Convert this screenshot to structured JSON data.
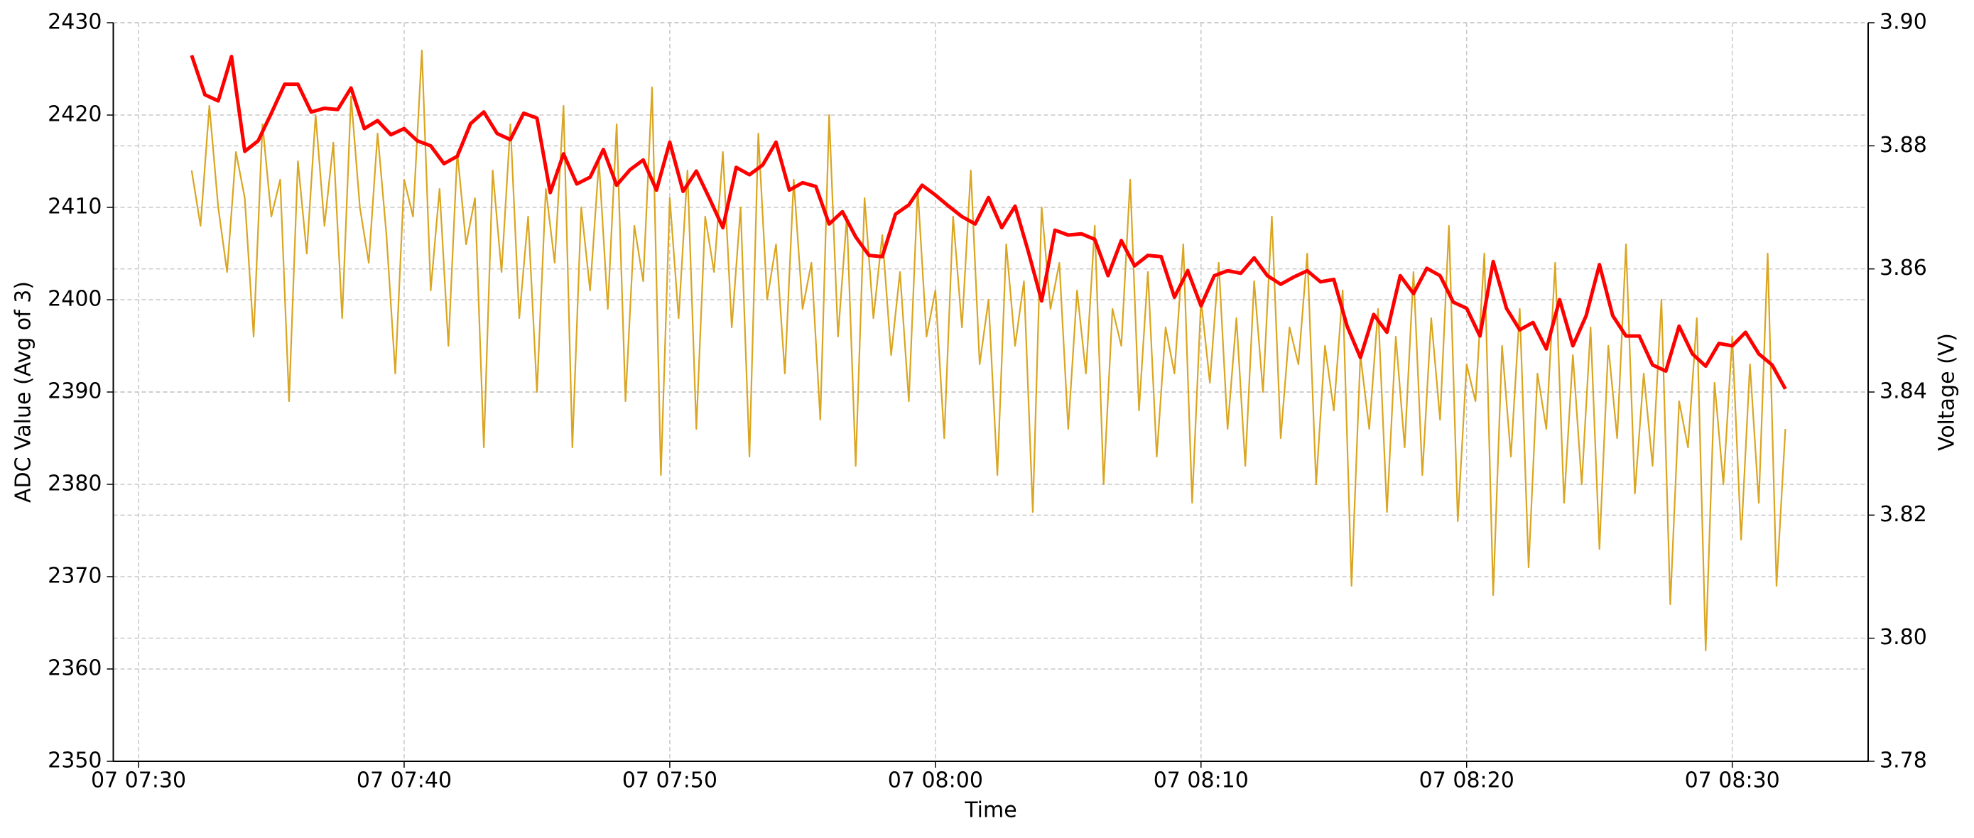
{
  "chart_data": {
    "type": "line",
    "x_label": "Time",
    "y_label": "ADC Value (Avg of 3)",
    "y2_label": "Voltage (V)",
    "xlim": [
      "07 07:29:03",
      "07 08:35:07"
    ],
    "xticks": [
      "07 07:30",
      "07 07:40",
      "07 07:50",
      "07 08:00",
      "07 08:10",
      "07 08:20",
      "07 08:30"
    ],
    "ylim": [
      2350,
      2430
    ],
    "yticks": [
      2350,
      2360,
      2370,
      2380,
      2390,
      2400,
      2410,
      2420,
      2430
    ],
    "y2lim": [
      3.78,
      3.9
    ],
    "y2ticks": [
      3.78,
      {
        "value": 3.8,
        "label": "3.80"
      },
      3.82,
      3.84,
      3.86,
      3.88,
      {
        "value": 3.9,
        "label": "3.90"
      }
    ],
    "grid": true,
    "series": [
      {
        "color": "#daa520",
        "axis": "y",
        "x": [
          "07 07:32:00",
          "07 07:32:20",
          "07 07:32:40",
          "07 07:33:00",
          "07 07:33:20",
          "07 07:33:40",
          "07 07:34:00",
          "07 07:34:20",
          "07 07:34:40",
          "07 07:35:00",
          "07 07:35:20",
          "07 07:35:40",
          "07 07:36:00",
          "07 07:36:20",
          "07 07:36:40",
          "07 07:37:00",
          "07 07:37:20",
          "07 07:37:40",
          "07 07:38:00",
          "07 07:38:20",
          "07 07:38:40",
          "07 07:39:00",
          "07 07:39:20",
          "07 07:39:40",
          "07 07:40:00",
          "07 07:40:20",
          "07 07:40:40",
          "07 07:41:00",
          "07 07:41:20",
          "07 07:41:40",
          "07 07:42:00",
          "07 07:42:20",
          "07 07:42:40",
          "07 07:43:00",
          "07 07:43:20",
          "07 07:43:40",
          "07 07:44:00",
          "07 07:44:20",
          "07 07:44:40",
          "07 07:45:00",
          "07 07:45:20",
          "07 07:45:40",
          "07 07:46:00",
          "07 07:46:20",
          "07 07:46:40",
          "07 07:47:00",
          "07 07:47:20",
          "07 07:47:40",
          "07 07:48:00",
          "07 07:48:20",
          "07 07:48:40",
          "07 07:49:00",
          "07 07:49:20",
          "07 07:49:40",
          "07 07:50:00",
          "07 07:50:20",
          "07 07:50:40",
          "07 07:51:00",
          "07 07:51:20",
          "07 07:51:40",
          "07 07:52:00",
          "07 07:52:20",
          "07 07:52:40",
          "07 07:53:00",
          "07 07:53:20",
          "07 07:53:40",
          "07 07:54:00",
          "07 07:54:20",
          "07 07:54:40",
          "07 07:55:00",
          "07 07:55:20",
          "07 07:55:40",
          "07 07:56:00",
          "07 07:56:20",
          "07 07:56:40",
          "07 07:57:00",
          "07 07:57:20",
          "07 07:57:40",
          "07 07:58:00",
          "07 07:58:20",
          "07 07:58:40",
          "07 07:59:00",
          "07 07:59:20",
          "07 07:59:40",
          "07 08:00:00",
          "07 08:00:20",
          "07 08:00:40",
          "07 08:01:00",
          "07 08:01:20",
          "07 08:01:40",
          "07 08:02:00",
          "07 08:02:20",
          "07 08:02:40",
          "07 08:03:00",
          "07 08:03:20",
          "07 08:03:40",
          "07 08:04:00",
          "07 08:04:20",
          "07 08:04:40",
          "07 08:05:00",
          "07 08:05:20",
          "07 08:05:40",
          "07 08:06:00",
          "07 08:06:20",
          "07 08:06:40",
          "07 08:07:00",
          "07 08:07:20",
          "07 08:07:40",
          "07 08:08:00",
          "07 08:08:20",
          "07 08:08:40",
          "07 08:09:00",
          "07 08:09:20",
          "07 08:09:40",
          "07 08:10:00",
          "07 08:10:20",
          "07 08:10:40",
          "07 08:11:00",
          "07 08:11:20",
          "07 08:11:40",
          "07 08:12:00",
          "07 08:12:20",
          "07 08:12:40",
          "07 08:13:00",
          "07 08:13:20",
          "07 08:13:40",
          "07 08:14:00",
          "07 08:14:20",
          "07 08:14:40",
          "07 08:15:00",
          "07 08:15:20",
          "07 08:15:40",
          "07 08:16:00",
          "07 08:16:20",
          "07 08:16:40",
          "07 08:17:00",
          "07 08:17:20",
          "07 08:17:40",
          "07 08:18:00",
          "07 08:18:20",
          "07 08:18:40",
          "07 08:19:00",
          "07 08:19:20",
          "07 08:19:40",
          "07 08:20:00",
          "07 08:20:20",
          "07 08:20:40",
          "07 08:21:00",
          "07 08:21:20",
          "07 08:21:40",
          "07 08:22:00",
          "07 08:22:20",
          "07 08:22:40",
          "07 08:23:00",
          "07 08:23:20",
          "07 08:23:40",
          "07 08:24:00",
          "07 08:24:20",
          "07 08:24:40",
          "07 08:25:00",
          "07 08:25:20",
          "07 08:25:40",
          "07 08:26:00",
          "07 08:26:20",
          "07 08:26:40",
          "07 08:27:00",
          "07 08:27:20",
          "07 08:27:40",
          "07 08:28:00",
          "07 08:28:20",
          "07 08:28:40",
          "07 08:29:00",
          "07 08:29:20",
          "07 08:29:40",
          "07 08:30:00",
          "07 08:30:20",
          "07 08:30:40",
          "07 08:31:00",
          "07 08:31:20",
          "07 08:31:40",
          "07 08:32:00"
        ],
        "values": [
          2414,
          2408,
          2421,
          2410,
          2403,
          2416,
          2411,
          2396,
          2419,
          2409,
          2413,
          2389,
          2415,
          2405,
          2420,
          2408,
          2417,
          2398,
          2422,
          2410,
          2404,
          2418,
          2407,
          2392,
          2413,
          2409,
          2427,
          2401,
          2412,
          2395,
          2416,
          2406,
          2411,
          2384,
          2414,
          2403,
          2419,
          2398,
          2409,
          2390,
          2412,
          2404,
          2421,
          2384,
          2410,
          2401,
          2415,
          2399,
          2419,
          2389,
          2408,
          2402,
          2423,
          2381,
          2411,
          2398,
          2414,
          2386,
          2409,
          2403,
          2416,
          2397,
          2410,
          2383,
          2418,
          2400,
          2406,
          2392,
          2413,
          2399,
          2404,
          2387,
          2420,
          2396,
          2409,
          2382,
          2411,
          2398,
          2407,
          2394,
          2403,
          2389,
          2412,
          2396,
          2401,
          2385,
          2409,
          2397,
          2414,
          2393,
          2400,
          2381,
          2406,
          2395,
          2402,
          2377,
          2410,
          2399,
          2404,
          2386,
          2401,
          2392,
          2408,
          2380,
          2399,
          2395,
          2413,
          2388,
          2403,
          2383,
          2397,
          2392,
          2406,
          2378,
          2400,
          2391,
          2404,
          2386,
          2398,
          2382,
          2402,
          2390,
          2409,
          2385,
          2397,
          2393,
          2405,
          2380,
          2395,
          2388,
          2401,
          2369,
          2394,
          2386,
          2399,
          2377,
          2396,
          2384,
          2403,
          2381,
          2398,
          2387,
          2408,
          2376,
          2393,
          2389,
          2405,
          2368,
          2395,
          2383,
          2399,
          2371,
          2392,
          2386,
          2404,
          2378,
          2394,
          2380,
          2397,
          2373,
          2395,
          2385,
          2406,
          2379,
          2392,
          2382,
          2400,
          2367,
          2389,
          2384,
          2398,
          2362,
          2391,
          2380,
          2396,
          2374,
          2393,
          2378,
          2405,
          2369,
          2386
        ]
      },
      {
        "color": "#ff0000",
        "axis": "y2",
        "x": [
          "07 07:32:00",
          "07 07:32:30",
          "07 07:33:00",
          "07 07:33:30",
          "07 07:34:00",
          "07 07:34:30",
          "07 07:35:00",
          "07 07:35:30",
          "07 07:36:00",
          "07 07:36:30",
          "07 07:37:00",
          "07 07:37:30",
          "07 07:38:00",
          "07 07:38:30",
          "07 07:39:00",
          "07 07:39:30",
          "07 07:40:00",
          "07 07:40:30",
          "07 07:41:00",
          "07 07:41:30",
          "07 07:42:00",
          "07 07:42:30",
          "07 07:43:00",
          "07 07:43:30",
          "07 07:44:00",
          "07 07:44:30",
          "07 07:45:00",
          "07 07:45:30",
          "07 07:46:00",
          "07 07:46:30",
          "07 07:47:00",
          "07 07:47:30",
          "07 07:48:00",
          "07 07:48:30",
          "07 07:49:00",
          "07 07:49:30",
          "07 07:50:00",
          "07 07:50:30",
          "07 07:51:00",
          "07 07:51:30",
          "07 07:52:00",
          "07 07:52:30",
          "07 07:53:00",
          "07 07:53:30",
          "07 07:54:00",
          "07 07:54:30",
          "07 07:55:00",
          "07 07:55:30",
          "07 07:56:00",
          "07 07:56:30",
          "07 07:57:00",
          "07 07:57:30",
          "07 07:58:00",
          "07 07:58:30",
          "07 07:59:00",
          "07 07:59:30",
          "07 08:00:00",
          "07 08:00:30",
          "07 08:01:00",
          "07 08:01:30",
          "07 08:02:00",
          "07 08:02:30",
          "07 08:03:00",
          "07 08:03:30",
          "07 08:04:00",
          "07 08:04:30",
          "07 08:05:00",
          "07 08:05:30",
          "07 08:06:00",
          "07 08:06:30",
          "07 08:07:00",
          "07 08:07:30",
          "07 08:08:00",
          "07 08:08:30",
          "07 08:09:00",
          "07 08:09:30",
          "07 08:10:00",
          "07 08:10:30",
          "07 08:11:00",
          "07 08:11:30",
          "07 08:12:00",
          "07 08:12:30",
          "07 08:13:00",
          "07 08:13:30",
          "07 08:14:00",
          "07 08:14:30",
          "07 08:15:00",
          "07 08:15:30",
          "07 08:16:00",
          "07 08:16:30",
          "07 08:17:00",
          "07 08:17:30",
          "07 08:18:00",
          "07 08:18:30",
          "07 08:19:00",
          "07 08:19:30",
          "07 08:20:00",
          "07 08:20:30",
          "07 08:21:00",
          "07 08:21:30",
          "07 08:22:00",
          "07 08:22:30",
          "07 08:23:00",
          "07 08:23:30",
          "07 08:24:00",
          "07 08:24:30",
          "07 08:25:00",
          "07 08:25:30",
          "07 08:26:00",
          "07 08:26:30",
          "07 08:27:00",
          "07 08:27:30",
          "07 08:28:00",
          "07 08:28:30",
          "07 08:29:00",
          "07 08:29:30",
          "07 08:30:00",
          "07 08:30:30",
          "07 08:31:00",
          "07 08:31:30",
          "07 08:32:00"
        ],
        "values": [
          3.8947,
          3.8883,
          3.8873,
          3.8945,
          3.8791,
          3.8808,
          3.8853,
          3.89,
          3.89,
          3.8855,
          3.8861,
          3.8859,
          3.8894,
          3.8828,
          3.8841,
          3.8818,
          3.8828,
          3.8808,
          3.88,
          3.8771,
          3.8783,
          3.8836,
          3.8855,
          3.882,
          3.881,
          3.8853,
          3.8845,
          3.8724,
          3.8787,
          3.8738,
          3.8749,
          3.8794,
          3.8736,
          3.8761,
          3.8777,
          3.8728,
          3.8806,
          3.8726,
          3.8759,
          3.8714,
          3.8667,
          3.8765,
          3.8753,
          3.8769,
          3.8806,
          3.8728,
          3.874,
          3.8734,
          3.8673,
          3.8693,
          3.8652,
          3.8622,
          3.862,
          3.8689,
          3.8704,
          3.8736,
          3.872,
          3.8702,
          3.8685,
          3.8673,
          3.8716,
          3.8667,
          3.8702,
          3.8628,
          3.8548,
          3.8663,
          3.8655,
          3.8657,
          3.8648,
          3.8589,
          3.8646,
          3.8605,
          3.8622,
          3.862,
          3.8554,
          3.8597,
          3.854,
          3.8589,
          3.8597,
          3.8593,
          3.8618,
          3.8589,
          3.8575,
          3.8587,
          3.8597,
          3.8579,
          3.8583,
          3.8507,
          3.8456,
          3.8526,
          3.8497,
          3.8589,
          3.856,
          3.8601,
          3.8589,
          3.8546,
          3.8536,
          3.8491,
          3.8612,
          3.8536,
          3.8501,
          3.8513,
          3.847,
          3.855,
          3.8475,
          3.8524,
          3.8607,
          3.8524,
          3.8491,
          3.8491,
          3.8444,
          3.8434,
          3.8507,
          3.8462,
          3.8442,
          3.8479,
          3.8475,
          3.8497,
          3.8462,
          3.8444,
          3.8405
        ]
      }
    ]
  }
}
